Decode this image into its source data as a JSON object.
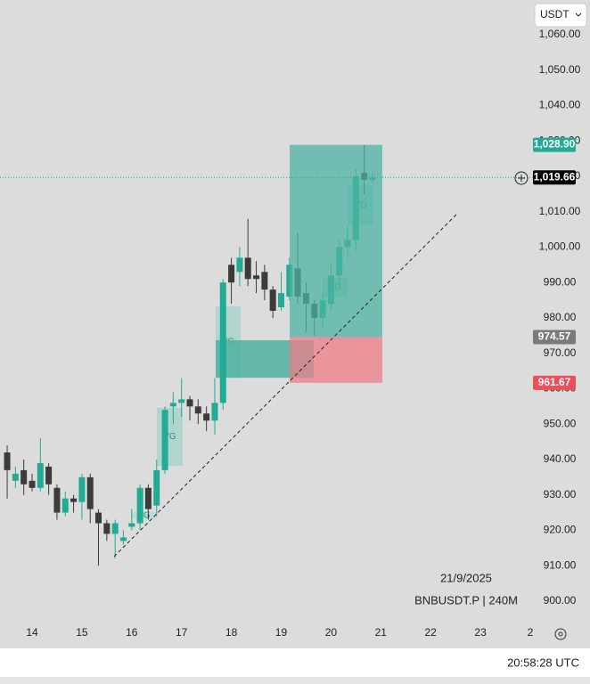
{
  "chart_data": {
    "type": "candlestick",
    "currency": "USDT",
    "date_label": "21/9/2025",
    "symbol": "BNBUSDT.P | 240M",
    "time": "20:58:28 UTC",
    "x": [
      13.5,
      13.667,
      13.833,
      14,
      14.167,
      14.333,
      14.5,
      14.667,
      14.833,
      15,
      15.167,
      15.333,
      15.5,
      15.667,
      15.833,
      16,
      16.167,
      16.333,
      16.5,
      16.667,
      16.833,
      17,
      17.167,
      17.333,
      17.5,
      17.667,
      17.833,
      18,
      18.167,
      18.333,
      18.5,
      18.667,
      18.833,
      19,
      19.167,
      19.333,
      19.5,
      19.667,
      19.833,
      20,
      20.167,
      20.333,
      20.5,
      20.667,
      20.833
    ],
    "open": [
      942,
      934,
      937,
      934,
      932,
      938,
      932,
      925,
      929,
      928,
      935,
      925,
      922,
      919,
      917,
      921,
      922,
      932,
      927,
      937,
      955,
      956,
      957,
      955,
      953,
      951,
      956,
      995,
      993,
      997,
      992,
      993,
      988,
      983,
      986,
      994,
      987,
      984,
      980,
      984,
      992,
      1000,
      1002,
      1021,
      1019
    ],
    "high": [
      944,
      938,
      940,
      936,
      946,
      939,
      933,
      931,
      930,
      936,
      936,
      926,
      923,
      923,
      920,
      926,
      933,
      933,
      940,
      955,
      959,
      963,
      958,
      957,
      955,
      963,
      991,
      997,
      1000,
      1008,
      996,
      995,
      989,
      993,
      997,
      1004,
      990,
      985,
      987,
      995,
      1002,
      1006,
      1022,
      1028.9,
      1021
    ],
    "low": [
      929,
      932,
      930,
      931,
      931,
      930,
      923,
      924,
      925,
      923,
      922,
      910,
      917,
      912,
      916,
      920,
      920,
      923,
      924,
      936,
      950,
      952,
      951,
      950,
      948,
      947,
      954,
      984,
      989,
      989,
      987,
      985,
      980,
      982,
      985,
      984,
      976,
      975,
      977,
      982,
      989,
      997,
      999,
      1015,
      1018
    ],
    "close": [
      937,
      936,
      933,
      932,
      939,
      933,
      925,
      929,
      928,
      935,
      926,
      922,
      919,
      922,
      918,
      922,
      932,
      926,
      937,
      954,
      956,
      957,
      955,
      953,
      951,
      956,
      990,
      990,
      997,
      991,
      991,
      988,
      982,
      987,
      995,
      986,
      984,
      980,
      985,
      992,
      1000,
      1002,
      1020,
      1019,
      1019.66
    ],
    "up_color": "#22ab94",
    "down_color": "#3b3b3b",
    "xlim": [
      13.356,
      24.054
    ],
    "xticks": [
      14,
      15,
      16,
      17,
      18,
      19,
      20,
      21,
      22,
      23,
      {
        "value": 24,
        "label": "2"
      }
    ],
    "ylim": [
      893.7,
      1069.8
    ],
    "yticks": [
      {
        "value": 900,
        "label": "900.00"
      },
      {
        "value": 910,
        "label": "910.00"
      },
      {
        "value": 920,
        "label": "920.00"
      },
      {
        "value": 930,
        "label": "930.00"
      },
      {
        "value": 940,
        "label": "940.00"
      },
      {
        "value": 950,
        "label": "950.00"
      },
      {
        "value": 960,
        "label": "960.00"
      },
      {
        "value": 970,
        "label": "970.00"
      },
      {
        "value": 980,
        "label": "980.00"
      },
      {
        "value": 990,
        "label": "990.00"
      },
      {
        "value": 1000,
        "label": "1,000.00"
      },
      {
        "value": 1010,
        "label": "1,010.00"
      },
      {
        "value": 1020,
        "label": "1,020.00"
      },
      {
        "value": 1030,
        "label": "1,030.00"
      },
      {
        "value": 1040,
        "label": "1,040.00"
      },
      {
        "value": 1050,
        "label": "1,050.00"
      },
      {
        "value": 1060,
        "label": "1,060.00"
      }
    ],
    "fvg_zones": [
      {
        "x": [
          17.685,
          18.186
        ],
        "y": [
          963.1,
          983.3
        ],
        "color": "#a9d3cb",
        "label": "VG"
      },
      {
        "x": [
          17.685,
          19.653
        ],
        "y": [
          963.1,
          973.7
        ],
        "color": "#4fb3a3"
      },
      {
        "x": [
          16.504,
          17.023
        ],
        "y": [
          938.2,
          954.6
        ],
        "color": "#a9d3cb",
        "label": "VG"
      },
      {
        "x": [
          15.986,
          16.504
        ],
        "y": [
          923.2,
          925.2
        ],
        "color": "#b8d8d2",
        "label": "VG"
      },
      {
        "x": [
          19.832,
          20.333
        ],
        "y": [
          986,
          991.3
        ],
        "color": "#9ccdc4",
        "label": "VG"
      },
      {
        "x": [
          20.333,
          20.852
        ],
        "y": [
          1006.2,
          1017.5
        ],
        "color": "#9ccdc4",
        "label": "VG"
      }
    ],
    "position": {
      "x": [
        19.17,
        21.03
      ],
      "target": 1028.9,
      "entry": 974.57,
      "stop": 961.67,
      "profit_color": "#4fb3a3",
      "loss_color": "#ee7d85"
    },
    "trendline": {
      "x": [
        15.646,
        22.515
      ],
      "y": [
        912.6,
        1009.2
      ]
    },
    "price_markers": [
      {
        "value": 1028.9,
        "label": "1,028.90",
        "color": "#22ab94"
      },
      {
        "value": 1019.66,
        "label": "1,019.66",
        "color": "#000000",
        "dotted_line": true
      },
      {
        "value": 974.57,
        "label": "974.57",
        "color": "#7a7a7a"
      },
      {
        "value": 961.67,
        "label": "961.67",
        "color": "#ef4d57"
      }
    ]
  }
}
